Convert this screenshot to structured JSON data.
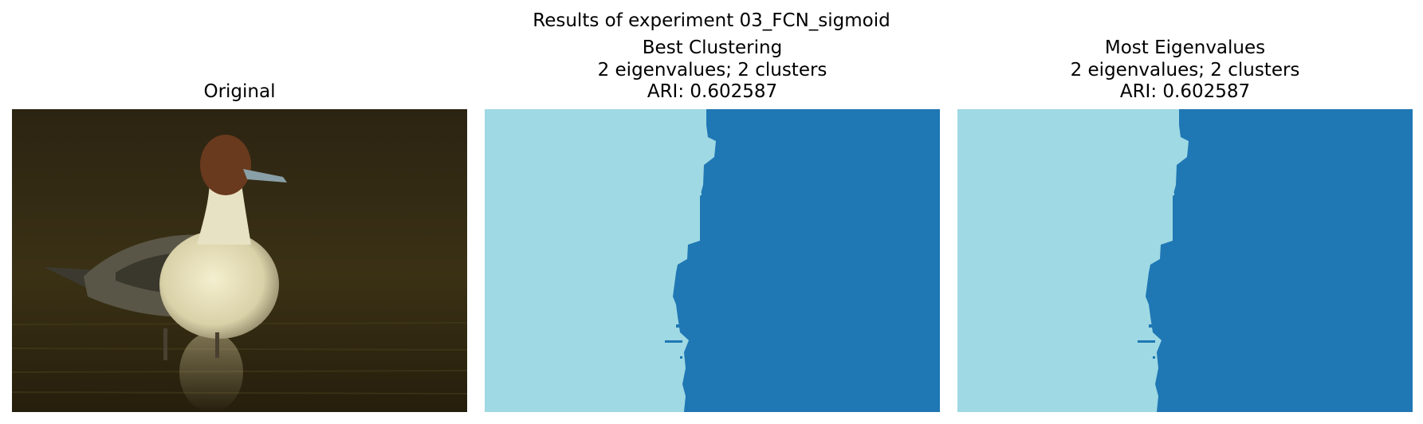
{
  "figure": {
    "suptitle": "Results of experiment 03_FCN_sigmoid"
  },
  "panels": [
    {
      "title_lines": [
        "Original"
      ]
    },
    {
      "title_lines": [
        "Best Clustering",
        "2 eigenvalues; 2 clusters",
        "ARI: 0.602587"
      ]
    },
    {
      "title_lines": [
        "Most Eigenvalues",
        "2 eigenvalues; 2 clusters",
        "ARI: 0.602587"
      ]
    }
  ],
  "colors": {
    "cluster_light": "#9fd9e3",
    "cluster_dark": "#1f77b4"
  }
}
